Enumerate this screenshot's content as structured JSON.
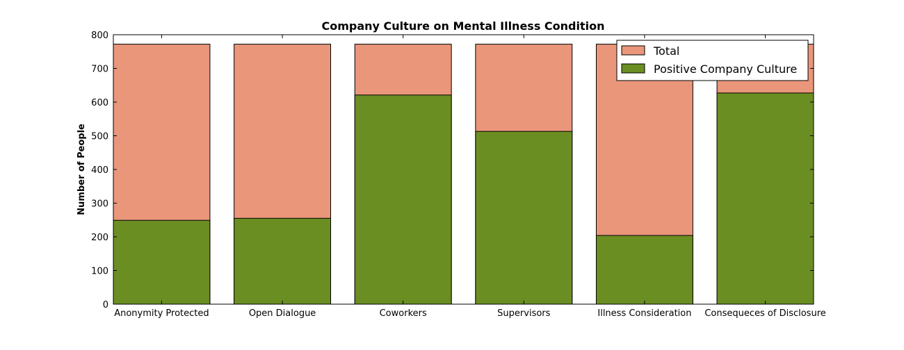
{
  "chart_data": {
    "type": "bar",
    "title": "Company Culture on Mental Illness Condition",
    "xlabel": "",
    "ylabel": "Number of People",
    "categories": [
      "Anonymity Protected",
      "Open Dialogue",
      "Coworkers",
      "Supervisors",
      "Illness Consideration",
      "Consequeces of Disclosure"
    ],
    "series": [
      {
        "name": "Total",
        "values": [
          772,
          772,
          772,
          772,
          772,
          772
        ]
      },
      {
        "name": "Positive Company Culture",
        "values": [
          249,
          255,
          621,
          513,
          204,
          627
        ]
      }
    ],
    "ylim": [
      0,
      800
    ],
    "yticks": [
      0,
      100,
      200,
      300,
      400,
      500,
      600,
      700,
      800
    ],
    "grid": false,
    "legend_position": "top-right",
    "colors": {
      "Total": "#e9967a",
      "Positive Company Culture": "#6b8e23",
      "edge": "#000000"
    }
  }
}
